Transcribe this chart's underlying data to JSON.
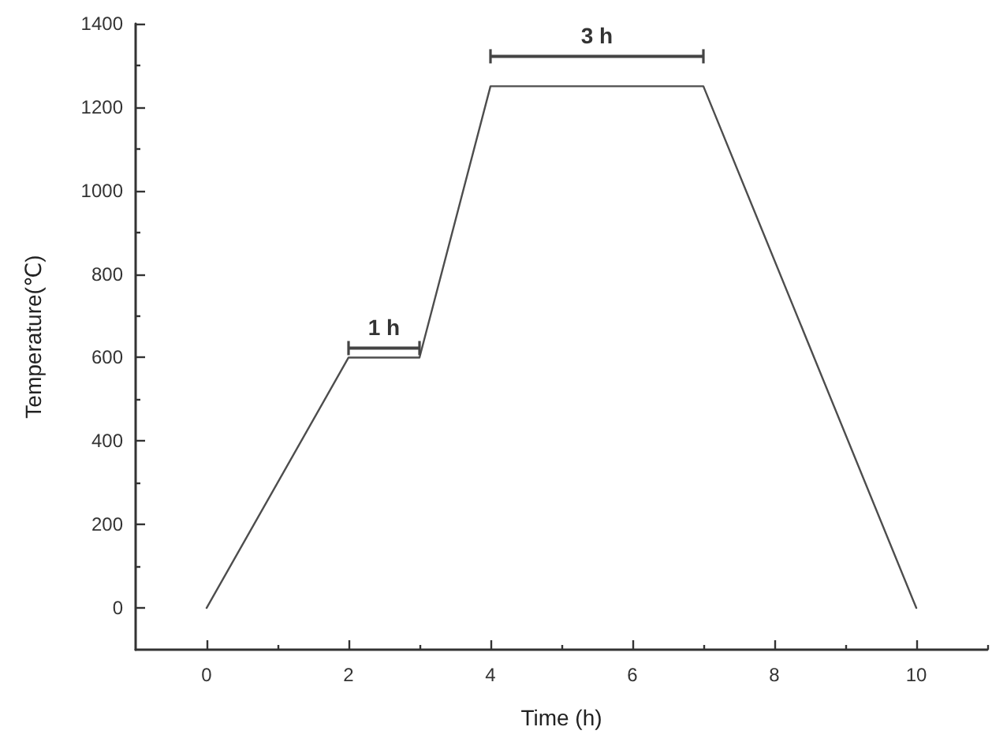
{
  "chart_data": {
    "type": "line",
    "xlabel": "Time (h)",
    "ylabel": "Temperature(℃)",
    "x": [
      0,
      2,
      3,
      4,
      7,
      10
    ],
    "values": [
      0,
      600,
      600,
      1250,
      1250,
      0
    ],
    "color": "#4d4d4d",
    "xlim": [
      -1,
      11
    ],
    "ylim": [
      -100,
      1400
    ],
    "xticks": [
      0,
      {
        "value": 1,
        "label": null
      },
      2,
      {
        "value": 3,
        "label": null
      },
      4,
      {
        "value": 5,
        "label": null
      },
      6,
      {
        "value": 7,
        "label": null
      },
      8,
      {
        "value": 9,
        "label": null
      },
      10,
      {
        "value": 11,
        "label": null
      }
    ],
    "yticks": [
      0,
      {
        "value": 100,
        "label": null
      },
      200,
      {
        "value": 300,
        "label": null
      },
      400,
      {
        "value": 500,
        "label": null
      },
      600,
      {
        "value": 700,
        "label": null
      },
      800,
      {
        "value": 900,
        "label": null
      },
      1000,
      {
        "value": 1100,
        "label": null
      },
      1200,
      {
        "value": 1300,
        "label": null
      },
      1400
    ],
    "grid": false,
    "marker": "none",
    "line_style": "solid",
    "annotations": [
      "1 h",
      "3 h"
    ]
  }
}
